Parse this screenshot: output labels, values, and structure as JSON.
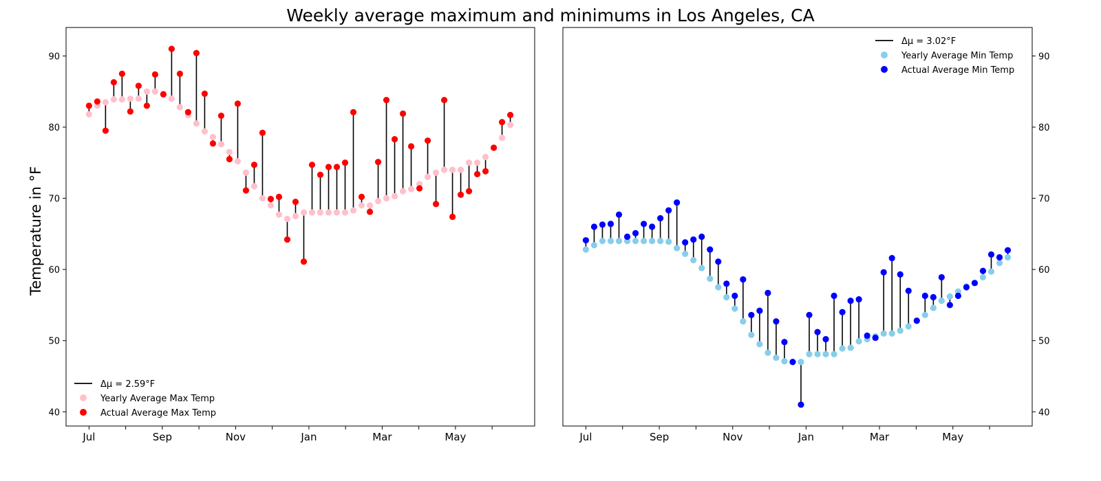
{
  "figure": {
    "title": "Weekly average maximum and minimums in Los Angeles, CA"
  },
  "chart_data": [
    {
      "type": "scatter",
      "subtype": "lollipop-dumbbell",
      "ylabel": "Temperature in °F",
      "ylim": [
        38,
        94
      ],
      "yticks": [
        40,
        50,
        60,
        70,
        80,
        90
      ],
      "ytick_side": "left",
      "x_tick_labels": [
        "Jul",
        "Sep",
        "Nov",
        "Jan",
        "Mar",
        "May"
      ],
      "x_minor_ticks": 12,
      "legend": {
        "position": "bottom-left",
        "entries": [
          {
            "label": "Δμ = 2.59°F",
            "kind": "line",
            "color": "#000000"
          },
          {
            "label": "Yearly Average Max Temp",
            "kind": "marker",
            "color": "#ffc0cb"
          },
          {
            "label": "Actual Average Max Temp",
            "kind": "marker",
            "color": "#ff0000"
          }
        ]
      },
      "series": [
        {
          "name": "Yearly Average Max Temp",
          "color": "#ffc0cb",
          "values": [
            81.8,
            83,
            83.5,
            83.9,
            83.9,
            84,
            84,
            85,
            85,
            84.7,
            84,
            82.8,
            81.7,
            80.5,
            79.4,
            78.6,
            77.6,
            76.5,
            75.2,
            73.6,
            71.7,
            70,
            69,
            67.7,
            67.1,
            67.5,
            68,
            68,
            68,
            68,
            68,
            68,
            68.3,
            69,
            69,
            69.6,
            70,
            70.3,
            71,
            71.3,
            72,
            73,
            73.6,
            74,
            74,
            74,
            75,
            75,
            75.8,
            77.1,
            78.5,
            80.3
          ]
        },
        {
          "name": "Actual Average Max Temp",
          "color": "#ff0000",
          "values": [
            83,
            83.6,
            79.5,
            86.3,
            87.5,
            82.2,
            85.8,
            83,
            87.4,
            84.6,
            91,
            87.5,
            82.1,
            90.4,
            84.7,
            77.7,
            81.6,
            75.5,
            83.3,
            71.1,
            74.7,
            79.2,
            69.9,
            70.2,
            64.2,
            69.5,
            61.1,
            74.7,
            73.3,
            74.4,
            74.4,
            75,
            82.1,
            70.2,
            68.1,
            75.1,
            83.8,
            78.3,
            81.9,
            77.3,
            71.4,
            78.1,
            69.2,
            83.8,
            67.4,
            70.5,
            71,
            73.4,
            73.8,
            77.1,
            80.7,
            81.7
          ]
        }
      ]
    },
    {
      "type": "scatter",
      "subtype": "lollipop-dumbbell",
      "ylim": [
        38,
        94
      ],
      "yticks": [
        40,
        50,
        60,
        70,
        80,
        90
      ],
      "ytick_side": "right",
      "x_tick_labels": [
        "Jul",
        "Sep",
        "Nov",
        "Jan",
        "Mar",
        "May"
      ],
      "x_minor_ticks": 12,
      "legend": {
        "position": "top-right",
        "entries": [
          {
            "label": "Δμ = 3.02°F",
            "kind": "line",
            "color": "#000000"
          },
          {
            "label": "Yearly Average Min Temp",
            "kind": "marker",
            "color": "#87ceeb"
          },
          {
            "label": "Actual Average Min Temp",
            "kind": "marker",
            "color": "#0000ff"
          }
        ]
      },
      "series": [
        {
          "name": "Yearly Average Min Temp",
          "color": "#87ceeb",
          "values": [
            62.8,
            63.4,
            64,
            64,
            64,
            64,
            64,
            64,
            64,
            64,
            63.9,
            63,
            62.2,
            61.3,
            60.2,
            58.7,
            57.5,
            56.1,
            54.5,
            52.7,
            50.8,
            49.5,
            48.3,
            47.6,
            47.1,
            47,
            47,
            48.1,
            48.1,
            48.1,
            48.1,
            48.9,
            49,
            49.9,
            50.2,
            50.6,
            51,
            51,
            51.4,
            52,
            52.8,
            53.6,
            54.6,
            55.6,
            56.2,
            56.9,
            57.6,
            58.1,
            58.9,
            59.7,
            60.9,
            61.7
          ]
        },
        {
          "name": "Actual Average Min Temp",
          "color": "#0000ff",
          "values": [
            64.1,
            66,
            66.3,
            66.4,
            67.7,
            64.6,
            65.1,
            66.4,
            66,
            67.2,
            68.3,
            69.4,
            63.8,
            64.2,
            64.6,
            62.8,
            61.1,
            58,
            56.3,
            58.6,
            53.6,
            54.2,
            56.7,
            52.7,
            49.8,
            47,
            41,
            53.6,
            51.2,
            50.2,
            56.3,
            54,
            55.6,
            55.8,
            50.7,
            50.4,
            59.6,
            61.6,
            59.3,
            57,
            52.8,
            56.3,
            56.1,
            58.9,
            55,
            56.3,
            57.5,
            58.1,
            59.8,
            62.1,
            61.7,
            62.7
          ]
        }
      ]
    }
  ]
}
